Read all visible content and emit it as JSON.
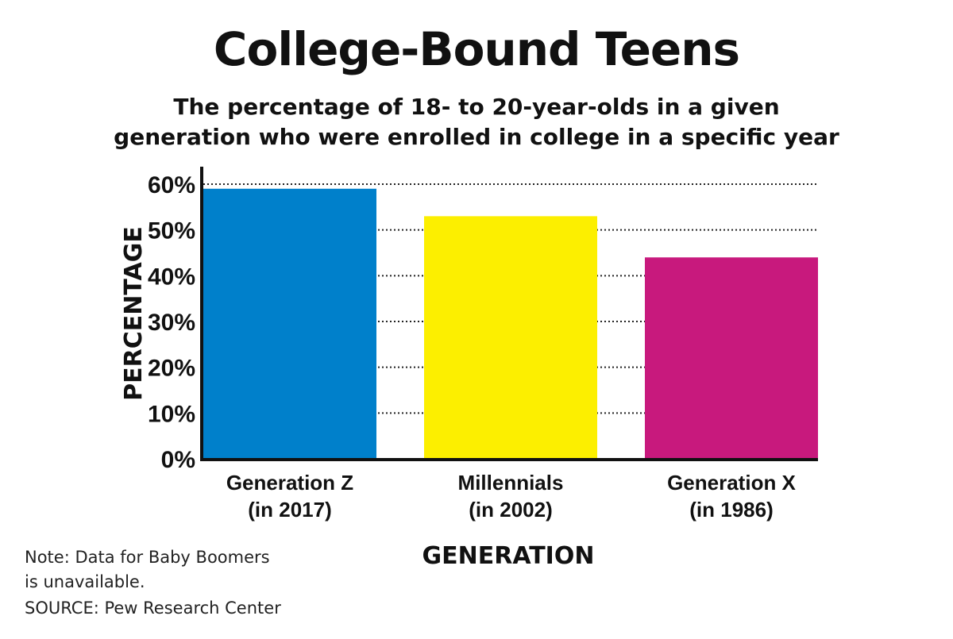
{
  "chart_data": {
    "type": "bar",
    "title": "College-Bound Teens",
    "subtitle_lines": [
      "The percentage of 18- to 20-year-olds in a given",
      "generation who were enrolled in college in a specific year"
    ],
    "xlabel": "GENERATION",
    "ylabel": "PERCENTAGE",
    "ylim": [
      0,
      60
    ],
    "yticks": [
      0,
      10,
      20,
      30,
      40,
      50,
      60
    ],
    "ytick_labels": [
      "0%",
      "10%",
      "20%",
      "30%",
      "40%",
      "50%",
      "60%"
    ],
    "grid": true,
    "categories": [
      {
        "line1": "Generation Z",
        "line2": "(in 2017)"
      },
      {
        "line1": "Millennials",
        "line2": "(in 2002)"
      },
      {
        "line1": "Generation X",
        "line2": "(in 1986)"
      }
    ],
    "values": [
      59,
      53,
      44
    ],
    "colors": [
      "#0080cb",
      "#fcef00",
      "#c8197d"
    ],
    "note_lines": [
      "Note: Data for Baby Boomers",
      "is unavailable."
    ],
    "source": "SOURCE: Pew Research Center"
  }
}
